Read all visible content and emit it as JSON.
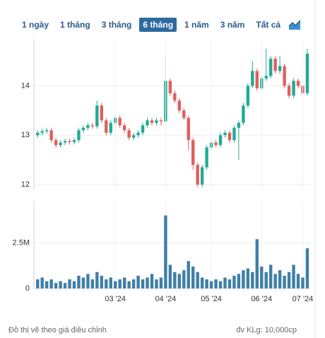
{
  "range_buttons": [
    "1 ngày",
    "1 tháng",
    "3 tháng",
    "6 tháng",
    "1 năm",
    "3 năm",
    "Tất cả"
  ],
  "active_range": 3,
  "chart_data": [
    {
      "type": "candlestick",
      "open": [
        13.0,
        13.05,
        13.08,
        13.1,
        12.9,
        12.8,
        12.85,
        12.88,
        12.86,
        12.9,
        13.1,
        13.15,
        13.2,
        13.18,
        13.6,
        13.3,
        13.05,
        13.25,
        13.35,
        13.2,
        13.1,
        12.95,
        13.0,
        13.05,
        13.2,
        13.3,
        13.25,
        13.3,
        13.28,
        14.1,
        13.85,
        13.7,
        13.5,
        13.35,
        12.9,
        12.4,
        12.0,
        12.35,
        12.75,
        12.85,
        12.8,
        13.0,
        13.05,
        12.9,
        13.15,
        13.25,
        13.6,
        14.0,
        14.3,
        13.95,
        14.15,
        14.2,
        14.55,
        14.3,
        14.4,
        14.0,
        13.8,
        14.1,
        14.0,
        13.85
      ],
      "high": [
        13.1,
        13.13,
        13.15,
        13.15,
        12.95,
        12.9,
        12.93,
        12.93,
        12.95,
        13.15,
        13.2,
        13.25,
        13.25,
        13.7,
        13.65,
        13.35,
        13.3,
        13.4,
        13.4,
        13.25,
        13.15,
        13.05,
        13.1,
        13.25,
        13.35,
        13.35,
        13.35,
        13.35,
        14.6,
        14.15,
        13.9,
        13.75,
        13.55,
        13.4,
        12.95,
        12.45,
        12.4,
        12.8,
        12.9,
        12.9,
        13.05,
        13.1,
        13.1,
        13.2,
        13.3,
        13.65,
        14.05,
        14.5,
        14.35,
        14.2,
        14.75,
        14.6,
        14.6,
        14.6,
        14.45,
        14.05,
        14.15,
        14.15,
        14.05,
        14.75
      ],
      "low": [
        12.95,
        13.0,
        13.03,
        12.85,
        12.75,
        12.75,
        12.8,
        12.81,
        12.81,
        12.85,
        13.05,
        13.1,
        13.13,
        13.13,
        13.25,
        13.0,
        13.0,
        13.2,
        13.15,
        13.05,
        12.9,
        12.9,
        12.95,
        13.0,
        13.15,
        13.2,
        13.2,
        13.2,
        13.25,
        13.8,
        13.65,
        13.45,
        13.3,
        12.7,
        12.3,
        11.95,
        11.95,
        12.3,
        12.7,
        12.75,
        12.75,
        12.95,
        12.85,
        12.85,
        12.5,
        13.2,
        13.55,
        13.95,
        13.9,
        13.9,
        14.1,
        14.15,
        14.25,
        14.25,
        13.95,
        13.75,
        13.75,
        13.95,
        13.8,
        13.8
      ],
      "close": [
        13.05,
        13.08,
        13.1,
        12.9,
        12.8,
        12.85,
        12.88,
        12.86,
        12.9,
        13.1,
        13.15,
        13.2,
        13.18,
        13.6,
        13.3,
        13.05,
        13.25,
        13.35,
        13.2,
        13.1,
        12.95,
        13.0,
        13.05,
        13.2,
        13.3,
        13.25,
        13.3,
        13.28,
        14.1,
        13.85,
        13.7,
        13.5,
        13.35,
        12.9,
        12.4,
        12.0,
        12.35,
        12.75,
        12.85,
        12.8,
        13.0,
        13.05,
        12.9,
        13.15,
        13.25,
        13.6,
        14.0,
        14.3,
        13.95,
        14.15,
        14.2,
        14.55,
        14.3,
        14.4,
        14.0,
        13.8,
        14.1,
        14.0,
        13.85,
        14.65
      ],
      "up_color": "#22ab94",
      "down_color": "#e35d5d",
      "ylim": [
        11.9,
        14.95
      ],
      "yticks": [
        12,
        13,
        14
      ],
      "grid": true
    },
    {
      "type": "bar",
      "values": [
        500000,
        600000,
        400000,
        500000,
        300000,
        400000,
        300000,
        500000,
        400000,
        700000,
        600000,
        800000,
        500000,
        900000,
        700000,
        500000,
        600000,
        400000,
        500000,
        600000,
        400000,
        500000,
        700000,
        500000,
        600000,
        800000,
        500000,
        600000,
        4000000,
        1300000,
        900000,
        800000,
        1000000,
        1500000,
        1200000,
        900000,
        600000,
        500000,
        400000,
        500000,
        400000,
        600000,
        500000,
        700000,
        800000,
        1000000,
        1100000,
        900000,
        2700000,
        1200000,
        900000,
        1300000,
        800000,
        1000000,
        700000,
        900000,
        1300000,
        800000,
        600000,
        2200000
      ],
      "color": "#3f7fa6",
      "ylim": [
        0,
        4800000
      ],
      "yticks": [
        0,
        {
          "value": 2500000,
          "label": "2.5M"
        }
      ],
      "xticks": [
        {
          "value": 17,
          "label": "03 '24"
        },
        {
          "value": 28,
          "label": "04 '24"
        },
        {
          "value": 38,
          "label": "05 '24"
        },
        {
          "value": 49,
          "label": "06 '24"
        },
        {
          "value": 58,
          "label": "07 '24"
        }
      ],
      "grid": true
    }
  ],
  "footer": {
    "note": "Đồ thị vẽ theo giá điều chỉnh",
    "unit": "đv KLg: 10,000cp"
  }
}
